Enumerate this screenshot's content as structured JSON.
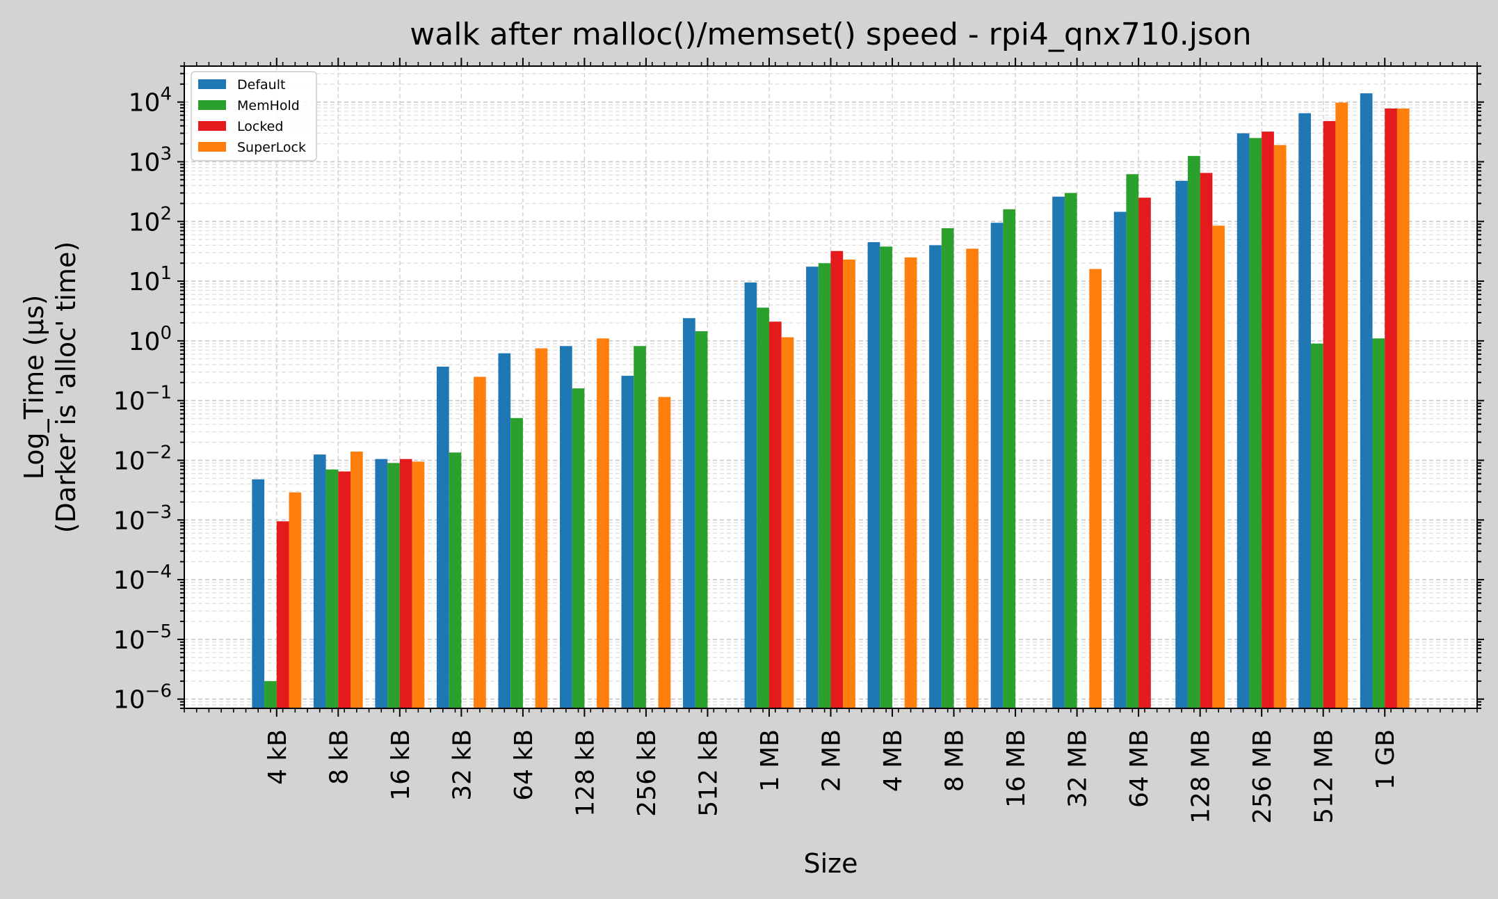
{
  "chart_data": {
    "type": "bar",
    "title": "walk after malloc()/memset() speed - rpi4_qnx710.json",
    "xlabel": "Size",
    "ylabel_line1": "Log_Time (µs)",
    "ylabel_line2": "(Darker is 'alloc' time)",
    "yscale": "log",
    "ylim": [
      7e-07,
      40000
    ],
    "grid": true,
    "legend_position": "upper-left",
    "categories": [
      "4 kB",
      "8 kB",
      "16 kB",
      "32 kB",
      "64 kB",
      "128 kB",
      "256 kB",
      "512 kB",
      "1 MB",
      "2 MB",
      "4 MB",
      "8 MB",
      "16 MB",
      "32 MB",
      "64 MB",
      "128 MB",
      "256 MB",
      "512 MB",
      "1 GB"
    ],
    "y_ticks": [
      {
        "exp": "-6",
        "value": 1e-06
      },
      {
        "exp": "-5",
        "value": 1e-05
      },
      {
        "exp": "-4",
        "value": 0.0001
      },
      {
        "exp": "-3",
        "value": 0.001
      },
      {
        "exp": "-2",
        "value": 0.01
      },
      {
        "exp": "-1",
        "value": 0.1
      },
      {
        "exp": "0",
        "value": 1
      },
      {
        "exp": "1",
        "value": 10
      },
      {
        "exp": "2",
        "value": 100
      },
      {
        "exp": "3",
        "value": 1000
      },
      {
        "exp": "4",
        "value": 10000
      }
    ],
    "series": [
      {
        "name": "Default",
        "color": "#1f77b4",
        "values": [
          0.0048,
          0.0125,
          0.0105,
          0.37,
          0.62,
          0.82,
          0.26,
          2.4,
          9.5,
          17.5,
          45,
          40,
          95,
          260,
          145,
          480,
          3000,
          6500,
          14000
        ]
      },
      {
        "name": "MemHold",
        "color": "#2ca02c",
        "values": [
          2e-06,
          0.007,
          0.009,
          0.0135,
          0.051,
          0.16,
          0.82,
          1.45,
          3.6,
          20,
          38,
          77,
          160,
          300,
          620,
          1250,
          2500,
          0.9,
          1.1
        ]
      },
      {
        "name": "Locked",
        "color": "#e41a1c",
        "values": [
          0.00095,
          0.0065,
          0.0105,
          null,
          null,
          null,
          null,
          null,
          2.1,
          32,
          null,
          null,
          null,
          null,
          250,
          650,
          3200,
          4800,
          7800
        ]
      },
      {
        "name": "SuperLock",
        "color": "#ff7f0e",
        "values": [
          0.0029,
          0.014,
          0.0095,
          0.25,
          0.75,
          1.1,
          0.115,
          null,
          1.15,
          23,
          25,
          35,
          null,
          16,
          null,
          85,
          1900,
          9800,
          7800
        ]
      }
    ]
  }
}
